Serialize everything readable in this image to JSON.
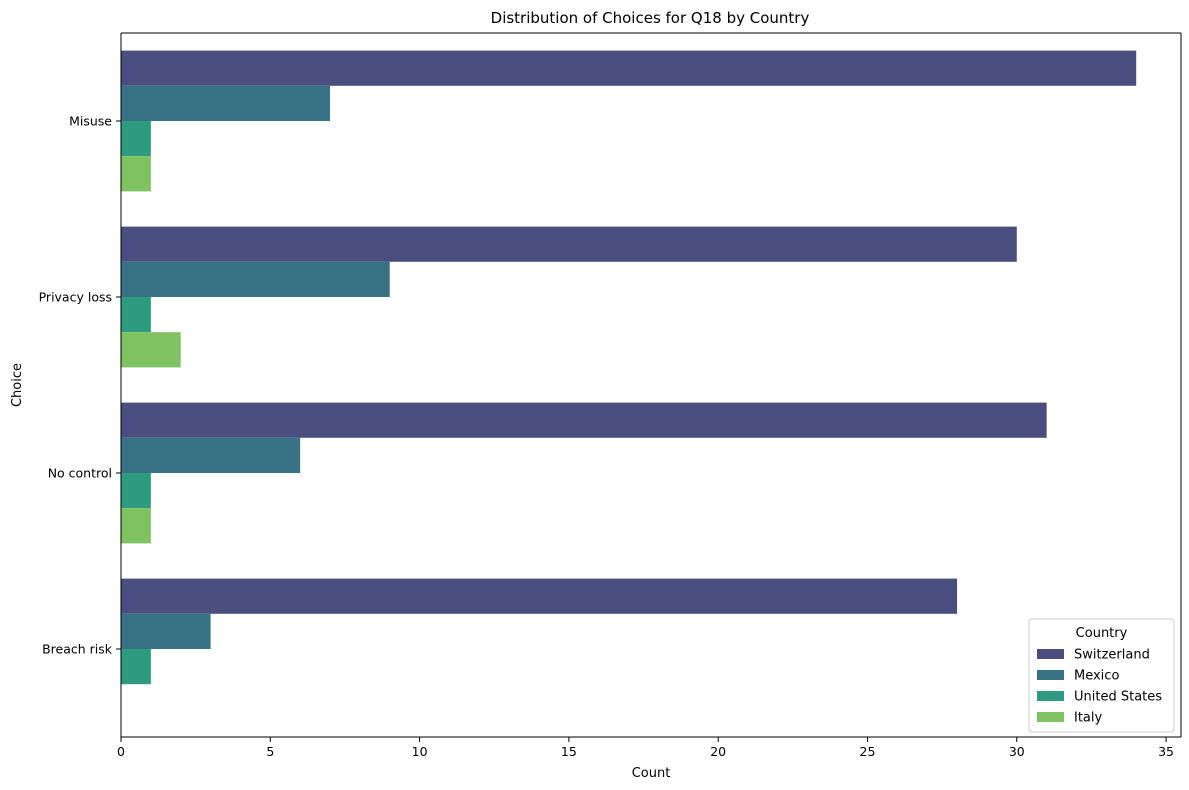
{
  "chart_data": {
    "type": "bar",
    "orientation": "horizontal",
    "title": "Distribution of Choices for Q18 by Country",
    "xlabel": "Count",
    "ylabel": "Choice",
    "xlim": [
      0,
      35.5
    ],
    "xticks": [
      0,
      5,
      10,
      15,
      20,
      25,
      30,
      35
    ],
    "categories": [
      "Misuse",
      "Privacy loss",
      "No control",
      "Breach risk"
    ],
    "legend": {
      "title": "Country",
      "placement": "bottom-right"
    },
    "grid": false,
    "series": [
      {
        "name": "Switzerland",
        "color": "#4a4e7e",
        "values": [
          34,
          30,
          31,
          28
        ]
      },
      {
        "name": "Mexico",
        "color": "#367184",
        "values": [
          7,
          9,
          6,
          3
        ]
      },
      {
        "name": "United States",
        "color": "#2e9a80",
        "values": [
          1,
          1,
          1,
          1
        ]
      },
      {
        "name": "Italy",
        "color": "#7ec262",
        "values": [
          1,
          2,
          1,
          null
        ]
      }
    ]
  }
}
